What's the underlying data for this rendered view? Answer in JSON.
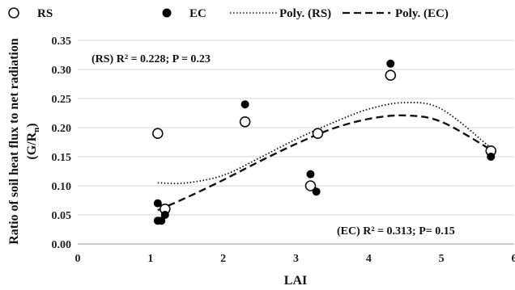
{
  "chart_data": {
    "type": "scatter",
    "xlabel": "LAI",
    "ylabel_main": "Ratio of soil heat flux to net radiation",
    "ylabel_sub_open": "(G/R",
    "ylabel_sub_n": "n",
    "ylabel_sub_close": ")",
    "xlim": [
      0,
      6
    ],
    "ylim": [
      0,
      0.35
    ],
    "xticks": [
      0,
      1,
      2,
      3,
      4,
      5,
      6
    ],
    "yticks": [
      0.0,
      0.05,
      0.1,
      0.15,
      0.2,
      0.25,
      0.3,
      0.35
    ],
    "ytick_labels": [
      "0.00",
      "0.05",
      "0.10",
      "0.15",
      "0.20",
      "0.25",
      "0.30",
      "0.35"
    ],
    "xtick_labels": [
      "0",
      "1",
      "2",
      "3",
      "4",
      "5",
      "6"
    ],
    "grid": "horizontal",
    "legend": {
      "position": "top",
      "entries": [
        {
          "label": "RS",
          "marker": "open-circle"
        },
        {
          "label": "EC",
          "marker": "filled-circle"
        },
        {
          "label": "Poly. (RS)",
          "line": "dotted"
        },
        {
          "label": "Poly. (EC)",
          "line": "dashed"
        }
      ]
    },
    "series": [
      {
        "name": "RS",
        "marker": "open-circle",
        "points": [
          {
            "x": 1.1,
            "y": 0.19
          },
          {
            "x": 1.2,
            "y": 0.06
          },
          {
            "x": 2.3,
            "y": 0.21
          },
          {
            "x": 3.2,
            "y": 0.1
          },
          {
            "x": 3.3,
            "y": 0.19
          },
          {
            "x": 4.3,
            "y": 0.29
          },
          {
            "x": 5.68,
            "y": 0.16
          }
        ]
      },
      {
        "name": "EC",
        "marker": "filled-circle",
        "points": [
          {
            "x": 1.1,
            "y": 0.07
          },
          {
            "x": 1.1,
            "y": 0.04
          },
          {
            "x": 1.15,
            "y": 0.04
          },
          {
            "x": 1.2,
            "y": 0.05
          },
          {
            "x": 2.3,
            "y": 0.24
          },
          {
            "x": 3.2,
            "y": 0.12
          },
          {
            "x": 3.28,
            "y": 0.09
          },
          {
            "x": 4.3,
            "y": 0.31
          },
          {
            "x": 5.68,
            "y": 0.15
          }
        ]
      }
    ],
    "trendlines": [
      {
        "name": "Poly. (RS)",
        "style": "dotted",
        "x_range": [
          1.1,
          5.68
        ],
        "curve": [
          {
            "x": 1.1,
            "y": 0.105
          },
          {
            "x": 1.5,
            "y": 0.105
          },
          {
            "x": 2.0,
            "y": 0.118
          },
          {
            "x": 2.5,
            "y": 0.148
          },
          {
            "x": 3.0,
            "y": 0.18
          },
          {
            "x": 3.5,
            "y": 0.208
          },
          {
            "x": 4.0,
            "y": 0.232
          },
          {
            "x": 4.5,
            "y": 0.243
          },
          {
            "x": 5.0,
            "y": 0.232
          },
          {
            "x": 5.68,
            "y": 0.165
          }
        ]
      },
      {
        "name": "Poly. (EC)",
        "style": "dashed",
        "x_range": [
          1.1,
          5.68
        ],
        "curve": [
          {
            "x": 1.1,
            "y": 0.058
          },
          {
            "x": 1.5,
            "y": 0.08
          },
          {
            "x": 2.0,
            "y": 0.11
          },
          {
            "x": 2.5,
            "y": 0.142
          },
          {
            "x": 3.0,
            "y": 0.172
          },
          {
            "x": 3.5,
            "y": 0.198
          },
          {
            "x": 4.0,
            "y": 0.215
          },
          {
            "x": 4.5,
            "y": 0.221
          },
          {
            "x": 5.0,
            "y": 0.21
          },
          {
            "x": 5.68,
            "y": 0.162
          }
        ]
      }
    ],
    "annotations": [
      {
        "text": "(RS) R² = 0.228; P = 0.23",
        "anchor": "top-left"
      },
      {
        "text": "(EC) R² = 0.313; P= 0.15",
        "anchor": "bottom-right"
      }
    ]
  }
}
